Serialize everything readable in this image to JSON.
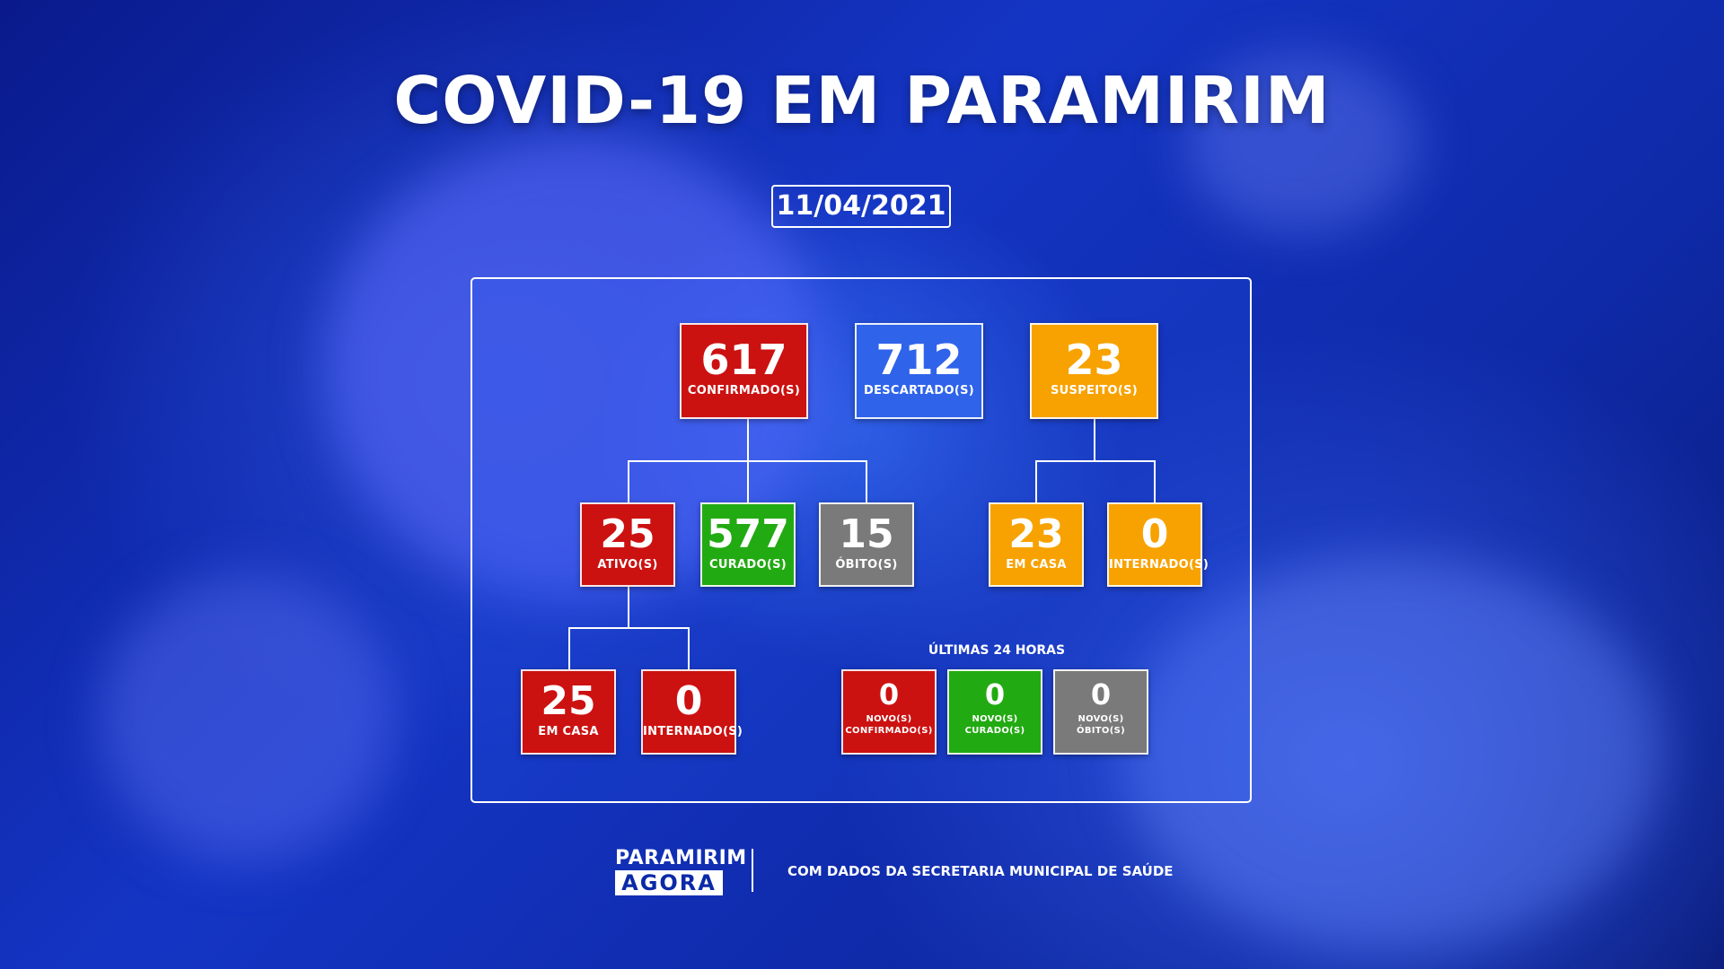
{
  "title": "COVID-19 EM PARAMIRIM",
  "date": "11/04/2021",
  "top": {
    "confirmed": {
      "value": "617",
      "label": "CONFIRMADO(S)"
    },
    "discarded": {
      "value": "712",
      "label": "DESCARTADO(S)"
    },
    "suspected": {
      "value": "23",
      "label": "SUSPEITO(S)"
    }
  },
  "middle": {
    "active": {
      "value": "25",
      "label": "ATIVO(S)"
    },
    "cured": {
      "value": "577",
      "label": "CURADO(S)"
    },
    "deaths": {
      "value": "15",
      "label": "ÓBITO(S)"
    },
    "suspected_home": {
      "value": "23",
      "label": "EM CASA"
    },
    "suspected_hospital": {
      "value": "0",
      "label": "INTERNADO(S)"
    }
  },
  "bottom": {
    "active_home": {
      "value": "25",
      "label": "EM CASA"
    },
    "active_hospital": {
      "value": "0",
      "label": "INTERNADO(S)"
    }
  },
  "last24": {
    "heading": "ÚLTIMAS 24 HORAS",
    "new_confirmed": {
      "value": "0",
      "label_1": "NOVO(S)",
      "label_2": "CONFIRMADO(S)"
    },
    "new_cured": {
      "value": "0",
      "label_1": "NOVO(S)",
      "label_2": "CURADO(S)"
    },
    "new_deaths": {
      "value": "0",
      "label_1": "NOVO(S)",
      "label_2": "ÓBITO(S)"
    }
  },
  "footer": {
    "logo_line1": "PARAMIRIM",
    "logo_line2": "AGORA",
    "source": "COM DADOS DA SECRETARIA MUNICIPAL DE SAÚDE"
  },
  "colors": {
    "red": "#cc1111",
    "green": "#22aa12",
    "gray": "#7a7a7a",
    "orange": "#f7a200",
    "blue": "#2f63ea"
  }
}
